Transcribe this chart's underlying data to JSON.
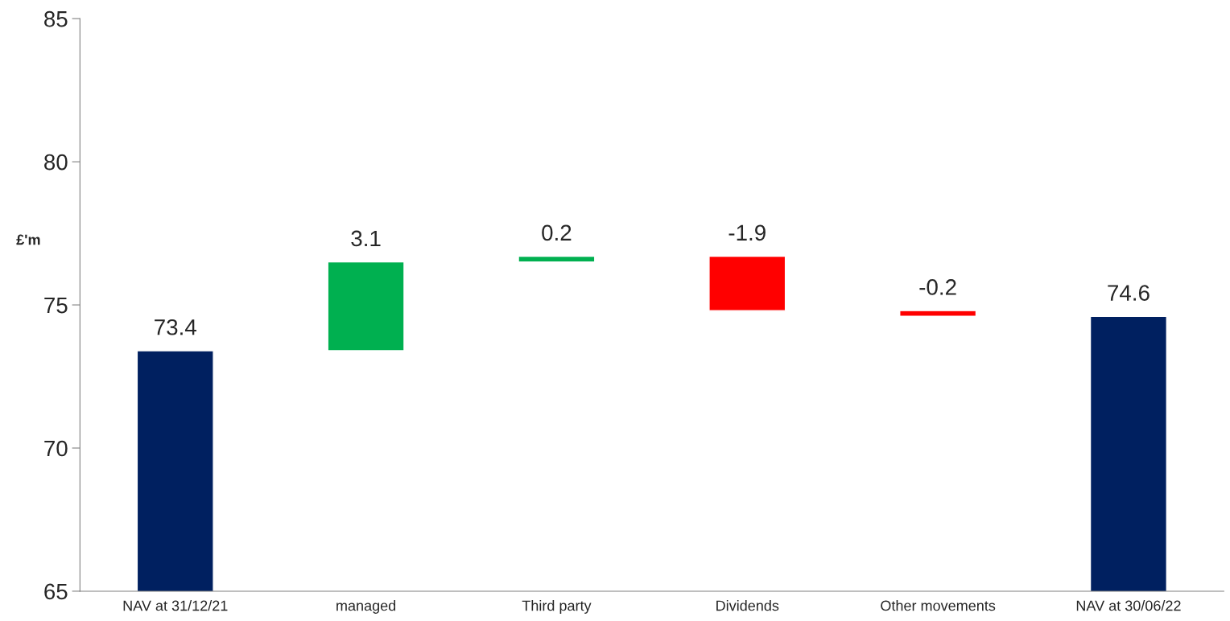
{
  "chart_data": {
    "type": "bar",
    "ylabel": "£'m",
    "categories": [
      "NAV at 31/12/21",
      "managed",
      "Third party",
      "Dividends",
      "Other movements",
      "NAV at 30/06/22"
    ],
    "values": [
      73.4,
      3.1,
      0.2,
      -1.9,
      -0.2,
      74.6
    ],
    "base": [
      0,
      73.4,
      76.5,
      76.7,
      74.8,
      0
    ],
    "colors": [
      "#002060",
      "#00b050",
      "#00b050",
      "#ff0000",
      "#ff0000",
      "#002060"
    ],
    "ylim": [
      65,
      85
    ],
    "yticks": [
      65,
      70,
      75,
      80,
      85
    ],
    "data_labels": true,
    "grid": false,
    "legend": false
  }
}
